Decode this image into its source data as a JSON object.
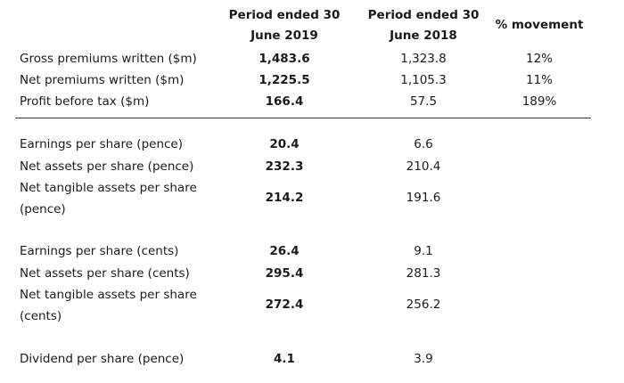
{
  "header": {
    "col1_line1": "Period ended 30",
    "col1_line2": "June 2019",
    "col2_line1": "Period ended 30",
    "col2_line2": "June 2018",
    "col3": "% movement"
  },
  "rows": [
    {
      "label": "Gross premiums written ($m)",
      "v2019": "1,483.6",
      "v2018": "1,323.8",
      "movement": "12%"
    },
    {
      "label": "Net premiums written ($m)",
      "v2019": "1,225.5",
      "v2018": "1,105.3",
      "movement": "11%"
    },
    {
      "label": "Profit before tax ($m)",
      "v2019": "166.4",
      "v2018": "57.5",
      "movement": "189%"
    },
    {
      "label": "Earnings per share (pence)",
      "v2019": "20.4",
      "v2018": "6.6",
      "movement": ""
    },
    {
      "label": "Net assets per share (pence)",
      "v2019": "232.3",
      "v2018": "210.4",
      "movement": ""
    },
    {
      "label": "Net tangible assets per share (pence)",
      "v2019": "214.2",
      "v2018": "191.6",
      "movement": ""
    },
    {
      "label": "Earnings per share (cents)",
      "v2019": "26.4",
      "v2018": "9.1",
      "movement": ""
    },
    {
      "label": "Net assets per share (cents)",
      "v2019": "295.4",
      "v2018": "281.3",
      "movement": ""
    },
    {
      "label": "Net tangible assets per share (cents)",
      "v2019": "272.4",
      "v2018": "256.2",
      "movement": ""
    },
    {
      "label": "Dividend per share (pence)",
      "v2019": "4.1",
      "v2018": "3.9",
      "movement": ""
    }
  ]
}
